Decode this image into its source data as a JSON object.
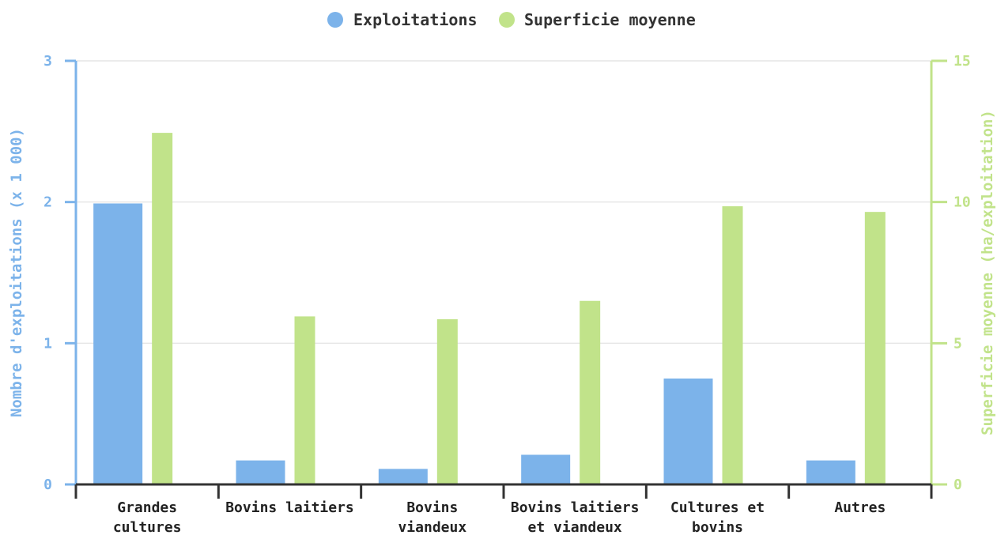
{
  "colors": {
    "exploitations": "#7cb3ea",
    "superficie": "#c1e38a",
    "left_axis": "#7cb3ea",
    "right_axis": "#c1e38a",
    "grid": "#e6e6e6",
    "x_axis": "#333333"
  },
  "chart_data": {
    "type": "bar",
    "categories": [
      [
        "Grandes",
        "cultures"
      ],
      [
        "Bovins laitiers"
      ],
      [
        "Bovins",
        "viandeux"
      ],
      [
        "Bovins laitiers",
        "et viandeux"
      ],
      [
        "Cultures et",
        "bovins"
      ],
      [
        "Autres"
      ]
    ],
    "series": [
      {
        "name": "Exploitations",
        "axis": "left",
        "values": [
          1.99,
          0.17,
          0.11,
          0.21,
          0.75,
          0.17
        ]
      },
      {
        "name": "Superficie moyenne",
        "axis": "right",
        "values": [
          12.45,
          5.95,
          5.85,
          6.5,
          9.85,
          9.65
        ]
      }
    ],
    "y_left": {
      "label": "Nombre d'exploitations (x 1 000)",
      "ylim": [
        0,
        3
      ],
      "ticks": [
        "0",
        "1",
        "2",
        "3"
      ]
    },
    "y_right": {
      "label": "Superficie moyenne (ha/exploitation)",
      "ylim": [
        0,
        15
      ],
      "ticks": [
        "0",
        "5",
        "10",
        "15"
      ]
    },
    "legend": {
      "position": "top-center"
    },
    "grid": true
  }
}
